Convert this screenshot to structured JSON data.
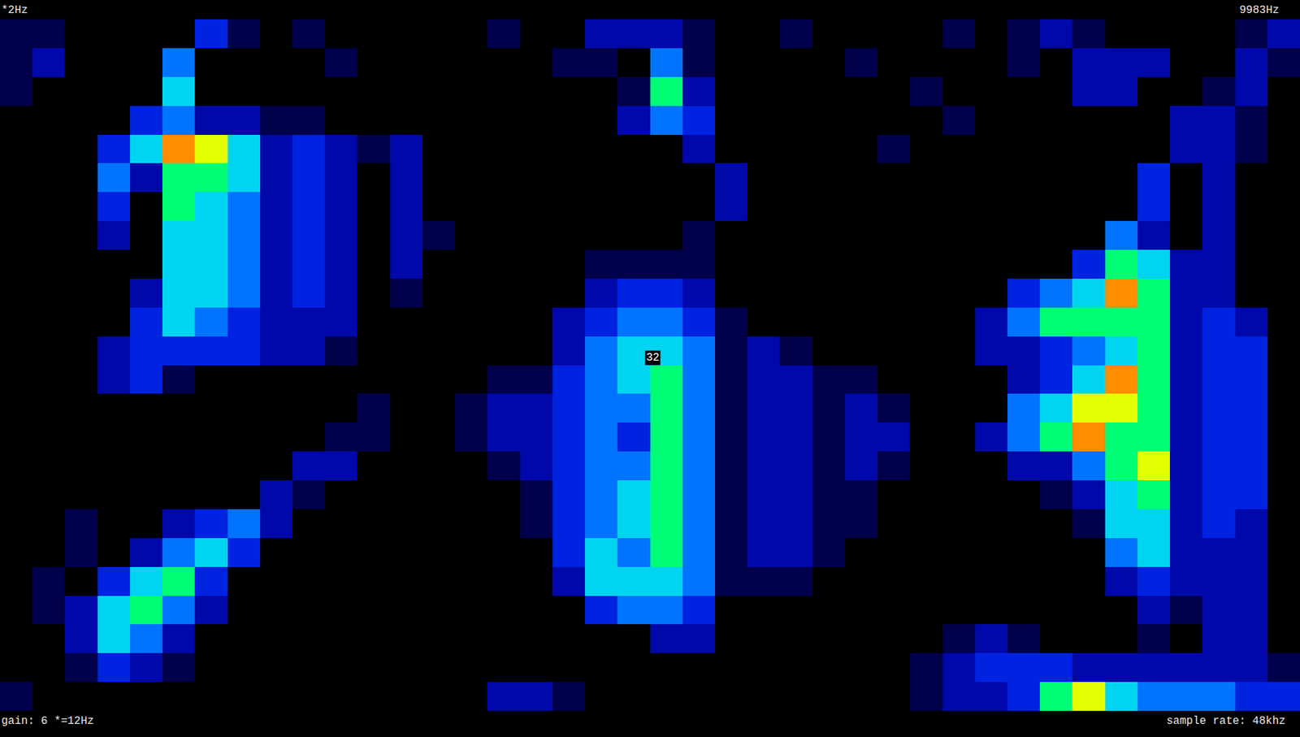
{
  "chart_data": {
    "type": "heatmap",
    "freq_labels": [
      "*2Hz",
      "9983Hz"
    ],
    "gain_label": "gain: 6 *=12Hz",
    "sample_rate_label": "sample rate: 48khz",
    "marker_label": "32",
    "tick_labels": false,
    "zlim": [
      0,
      9
    ],
    "cells": [
      [
        1,
        1,
        0,
        0,
        0,
        0,
        3,
        1,
        0,
        1,
        0,
        0,
        0,
        0,
        0,
        1,
        0,
        0,
        2,
        2,
        2,
        1,
        0,
        0,
        1,
        0,
        0,
        0,
        0,
        1,
        0,
        1,
        2,
        1,
        0,
        0,
        0,
        0,
        1,
        2
      ],
      [
        1,
        2,
        0,
        0,
        0,
        4,
        0,
        0,
        0,
        0,
        1,
        0,
        0,
        0,
        0,
        0,
        0,
        1,
        1,
        0,
        4,
        1,
        0,
        0,
        0,
        0,
        1,
        0,
        0,
        0,
        0,
        1,
        0,
        2,
        2,
        2,
        0,
        0,
        2,
        1
      ],
      [
        1,
        0,
        0,
        0,
        0,
        5,
        0,
        0,
        0,
        0,
        0,
        0,
        0,
        0,
        0,
        0,
        0,
        0,
        0,
        1,
        6,
        2,
        0,
        0,
        0,
        0,
        0,
        0,
        1,
        0,
        0,
        0,
        0,
        2,
        2,
        0,
        0,
        1,
        2,
        0
      ],
      [
        0,
        0,
        0,
        0,
        3,
        4,
        2,
        2,
        1,
        1,
        0,
        0,
        0,
        0,
        0,
        0,
        0,
        0,
        0,
        2,
        4,
        3,
        0,
        0,
        0,
        0,
        0,
        0,
        0,
        1,
        0,
        0,
        0,
        0,
        0,
        0,
        2,
        2,
        1,
        0
      ],
      [
        0,
        0,
        0,
        3,
        5,
        8,
        7,
        5,
        2,
        3,
        2,
        1,
        2,
        0,
        0,
        0,
        0,
        0,
        0,
        0,
        0,
        2,
        0,
        0,
        0,
        0,
        0,
        1,
        0,
        0,
        0,
        0,
        0,
        0,
        0,
        0,
        2,
        2,
        1,
        0
      ],
      [
        0,
        0,
        0,
        4,
        2,
        6,
        6,
        5,
        2,
        3,
        2,
        0,
        2,
        0,
        0,
        0,
        0,
        0,
        0,
        0,
        0,
        0,
        2,
        0,
        0,
        0,
        0,
        0,
        0,
        0,
        0,
        0,
        0,
        0,
        0,
        3,
        0,
        2,
        0,
        0
      ],
      [
        0,
        0,
        0,
        3,
        0,
        6,
        5,
        4,
        2,
        3,
        2,
        0,
        2,
        0,
        0,
        0,
        0,
        0,
        0,
        0,
        0,
        0,
        2,
        0,
        0,
        0,
        0,
        0,
        0,
        0,
        0,
        0,
        0,
        0,
        0,
        3,
        0,
        2,
        0,
        0
      ],
      [
        0,
        0,
        0,
        2,
        0,
        5,
        5,
        4,
        2,
        3,
        2,
        0,
        2,
        1,
        0,
        0,
        0,
        0,
        0,
        0,
        0,
        1,
        0,
        0,
        0,
        0,
        0,
        0,
        0,
        0,
        0,
        0,
        0,
        0,
        4,
        2,
        0,
        2,
        0,
        0
      ],
      [
        0,
        0,
        0,
        0,
        0,
        5,
        5,
        4,
        2,
        3,
        2,
        0,
        2,
        0,
        0,
        0,
        0,
        0,
        1,
        1,
        1,
        1,
        0,
        0,
        0,
        0,
        0,
        0,
        0,
        0,
        0,
        0,
        0,
        3,
        6,
        5,
        2,
        2,
        0,
        0
      ],
      [
        0,
        0,
        0,
        0,
        2,
        5,
        5,
        4,
        2,
        3,
        2,
        0,
        1,
        0,
        0,
        0,
        0,
        0,
        2,
        3,
        3,
        2,
        0,
        0,
        0,
        0,
        0,
        0,
        0,
        0,
        0,
        3,
        4,
        5,
        8,
        6,
        2,
        2,
        0,
        0
      ],
      [
        0,
        0,
        0,
        0,
        3,
        5,
        4,
        3,
        2,
        2,
        2,
        0,
        0,
        0,
        0,
        0,
        0,
        2,
        3,
        4,
        4,
        3,
        1,
        0,
        0,
        0,
        0,
        0,
        0,
        0,
        2,
        4,
        6,
        6,
        6,
        6,
        2,
        3,
        2,
        0
      ],
      [
        0,
        0,
        0,
        2,
        3,
        3,
        3,
        3,
        2,
        2,
        1,
        0,
        0,
        0,
        0,
        0,
        0,
        2,
        4,
        5,
        5,
        4,
        1,
        2,
        1,
        0,
        0,
        0,
        0,
        0,
        2,
        2,
        3,
        4,
        5,
        6,
        2,
        3,
        3,
        0
      ],
      [
        0,
        0,
        0,
        2,
        3,
        1,
        0,
        0,
        0,
        0,
        0,
        0,
        0,
        0,
        0,
        1,
        1,
        3,
        4,
        5,
        6,
        4,
        1,
        2,
        2,
        1,
        1,
        0,
        0,
        0,
        0,
        2,
        3,
        5,
        8,
        6,
        2,
        3,
        3,
        0
      ],
      [
        0,
        0,
        0,
        0,
        0,
        0,
        0,
        0,
        0,
        0,
        0,
        1,
        0,
        0,
        1,
        2,
        2,
        3,
        4,
        4,
        6,
        4,
        1,
        2,
        2,
        1,
        2,
        1,
        0,
        0,
        0,
        4,
        5,
        7,
        7,
        6,
        2,
        3,
        3,
        0
      ],
      [
        0,
        0,
        0,
        0,
        0,
        0,
        0,
        0,
        0,
        0,
        1,
        1,
        0,
        0,
        1,
        2,
        2,
        3,
        4,
        3,
        6,
        4,
        1,
        2,
        2,
        1,
        2,
        2,
        0,
        0,
        2,
        4,
        6,
        8,
        6,
        6,
        2,
        3,
        3,
        0
      ],
      [
        0,
        0,
        0,
        0,
        0,
        0,
        0,
        0,
        0,
        2,
        2,
        0,
        0,
        0,
        0,
        1,
        2,
        3,
        4,
        4,
        6,
        4,
        1,
        2,
        2,
        1,
        2,
        1,
        0,
        0,
        0,
        2,
        2,
        4,
        6,
        7,
        2,
        3,
        3,
        0
      ],
      [
        0,
        0,
        0,
        0,
        0,
        0,
        0,
        0,
        2,
        1,
        0,
        0,
        0,
        0,
        0,
        0,
        1,
        3,
        4,
        5,
        6,
        4,
        1,
        2,
        2,
        1,
        1,
        0,
        0,
        0,
        0,
        0,
        1,
        2,
        5,
        6,
        2,
        3,
        3,
        0
      ],
      [
        0,
        0,
        1,
        0,
        0,
        2,
        3,
        4,
        2,
        0,
        0,
        0,
        0,
        0,
        0,
        0,
        1,
        3,
        4,
        5,
        6,
        4,
        1,
        2,
        2,
        1,
        1,
        0,
        0,
        0,
        0,
        0,
        0,
        1,
        5,
        5,
        2,
        3,
        2,
        0
      ],
      [
        0,
        0,
        1,
        0,
        2,
        4,
        5,
        3,
        0,
        0,
        0,
        0,
        0,
        0,
        0,
        0,
        0,
        3,
        5,
        4,
        6,
        4,
        1,
        2,
        2,
        1,
        0,
        0,
        0,
        0,
        0,
        0,
        0,
        0,
        4,
        5,
        2,
        2,
        2,
        0
      ],
      [
        0,
        1,
        0,
        3,
        5,
        6,
        3,
        0,
        0,
        0,
        0,
        0,
        0,
        0,
        0,
        0,
        0,
        2,
        5,
        5,
        5,
        4,
        1,
        1,
        1,
        0,
        0,
        0,
        0,
        0,
        0,
        0,
        0,
        0,
        2,
        3,
        2,
        2,
        2,
        0
      ],
      [
        0,
        1,
        2,
        5,
        6,
        4,
        2,
        0,
        0,
        0,
        0,
        0,
        0,
        0,
        0,
        0,
        0,
        0,
        3,
        4,
        4,
        3,
        0,
        0,
        0,
        0,
        0,
        0,
        0,
        0,
        0,
        0,
        0,
        0,
        0,
        2,
        1,
        2,
        2,
        0
      ],
      [
        0,
        0,
        2,
        5,
        4,
        2,
        0,
        0,
        0,
        0,
        0,
        0,
        0,
        0,
        0,
        0,
        0,
        0,
        0,
        0,
        2,
        2,
        0,
        0,
        0,
        0,
        0,
        0,
        0,
        1,
        2,
        1,
        0,
        0,
        0,
        1,
        0,
        2,
        2,
        0
      ],
      [
        0,
        0,
        1,
        3,
        2,
        1,
        0,
        0,
        0,
        0,
        0,
        0,
        0,
        0,
        0,
        0,
        0,
        0,
        0,
        0,
        0,
        0,
        0,
        0,
        0,
        0,
        0,
        0,
        1,
        2,
        3,
        3,
        3,
        2,
        2,
        2,
        2,
        2,
        2,
        1
      ],
      [
        1,
        0,
        0,
        0,
        0,
        0,
        0,
        0,
        0,
        0,
        0,
        0,
        0,
        0,
        0,
        2,
        2,
        1,
        0,
        0,
        0,
        0,
        0,
        0,
        0,
        0,
        0,
        0,
        1,
        2,
        2,
        3,
        6,
        7,
        5,
        4,
        4,
        4,
        3,
        3
      ]
    ]
  }
}
